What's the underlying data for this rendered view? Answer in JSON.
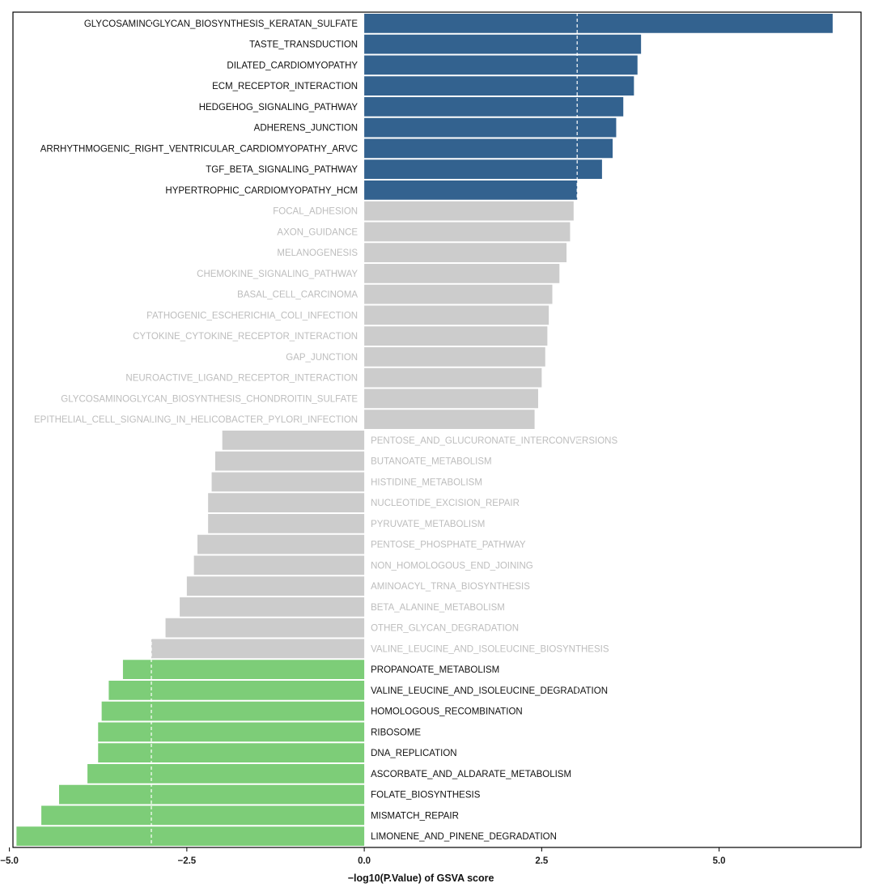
{
  "chart_data": {
    "type": "bar",
    "orientation": "horizontal",
    "xlabel": "−log10(P.Value) of GSVA score",
    "xlim": [
      -4.95,
      7.0
    ],
    "xticks": [
      -5.0,
      -2.5,
      0.0,
      2.5,
      5.0
    ],
    "xtick_labels": [
      "−5.0",
      "−2.5",
      "0.0",
      "2.5",
      "5.0"
    ],
    "threshold_lines": [
      -3.0,
      3.0
    ],
    "colors": {
      "up": "#33628f",
      "down": "#7dcd78",
      "ns": "#cccccc",
      "label_sig": "#111111",
      "label_ns": "#bdbdbd"
    },
    "grid": false,
    "categories": [
      "GLYCOSAMINOGLYCAN_BIOSYNTHESIS_KERATAN_SULFATE",
      "TASTE_TRANSDUCTION",
      "DILATED_CARDIOMYOPATHY",
      "ECM_RECEPTOR_INTERACTION",
      "HEDGEHOG_SIGNALING_PATHWAY",
      "ADHERENS_JUNCTION",
      "ARRHYTHMOGENIC_RIGHT_VENTRICULAR_CARDIOMYOPATHY_ARVC",
      "TGF_BETA_SIGNALING_PATHWAY",
      "HYPERTROPHIC_CARDIOMYOPATHY_HCM",
      "FOCAL_ADHESION",
      "AXON_GUIDANCE",
      "MELANOGENESIS",
      "CHEMOKINE_SIGNALING_PATHWAY",
      "BASAL_CELL_CARCINOMA",
      "PATHOGENIC_ESCHERICHIA_COLI_INFECTION",
      "CYTOKINE_CYTOKINE_RECEPTOR_INTERACTION",
      "GAP_JUNCTION",
      "NEUROACTIVE_LIGAND_RECEPTOR_INTERACTION",
      "GLYCOSAMINOGLYCAN_BIOSYNTHESIS_CHONDROITIN_SULFATE",
      "EPITHELIAL_CELL_SIGNALING_IN_HELICOBACTER_PYLORI_INFECTION",
      "PENTOSE_AND_GLUCURONATE_INTERCONVERSIONS",
      "BUTANOATE_METABOLISM",
      "HISTIDINE_METABOLISM",
      "NUCLEOTIDE_EXCISION_REPAIR",
      "PYRUVATE_METABOLISM",
      "PENTOSE_PHOSPHATE_PATHWAY",
      "NON_HOMOLOGOUS_END_JOINING",
      "AMINOACYL_TRNA_BIOSYNTHESIS",
      "BETA_ALANINE_METABOLISM",
      "OTHER_GLYCAN_DEGRADATION",
      "VALINE_LEUCINE_AND_ISOLEUCINE_BIOSYNTHESIS",
      "PROPANOATE_METABOLISM",
      "VALINE_LEUCINE_AND_ISOLEUCINE_DEGRADATION",
      "HOMOLOGOUS_RECOMBINATION",
      "RIBOSOME",
      "DNA_REPLICATION",
      "ASCORBATE_AND_ALDARATE_METABOLISM",
      "FOLATE_BIOSYNTHESIS",
      "MISMATCH_REPAIR",
      "LIMONENE_AND_PINENE_DEGRADATION"
    ],
    "values": [
      6.6,
      3.9,
      3.85,
      3.8,
      3.65,
      3.55,
      3.5,
      3.35,
      3.0,
      2.95,
      2.9,
      2.85,
      2.75,
      2.65,
      2.6,
      2.58,
      2.55,
      2.5,
      2.45,
      2.4,
      -2.0,
      -2.1,
      -2.15,
      -2.2,
      -2.2,
      -2.35,
      -2.4,
      -2.5,
      -2.6,
      -2.8,
      -3.0,
      -3.4,
      -3.6,
      -3.7,
      -3.75,
      -3.75,
      -3.9,
      -4.3,
      -4.55,
      -4.9
    ],
    "group": [
      "up",
      "up",
      "up",
      "up",
      "up",
      "up",
      "up",
      "up",
      "up",
      "ns",
      "ns",
      "ns",
      "ns",
      "ns",
      "ns",
      "ns",
      "ns",
      "ns",
      "ns",
      "ns",
      "ns",
      "ns",
      "ns",
      "ns",
      "ns",
      "ns",
      "ns",
      "ns",
      "ns",
      "ns",
      "ns",
      "down",
      "down",
      "down",
      "down",
      "down",
      "down",
      "down",
      "down",
      "down"
    ]
  }
}
